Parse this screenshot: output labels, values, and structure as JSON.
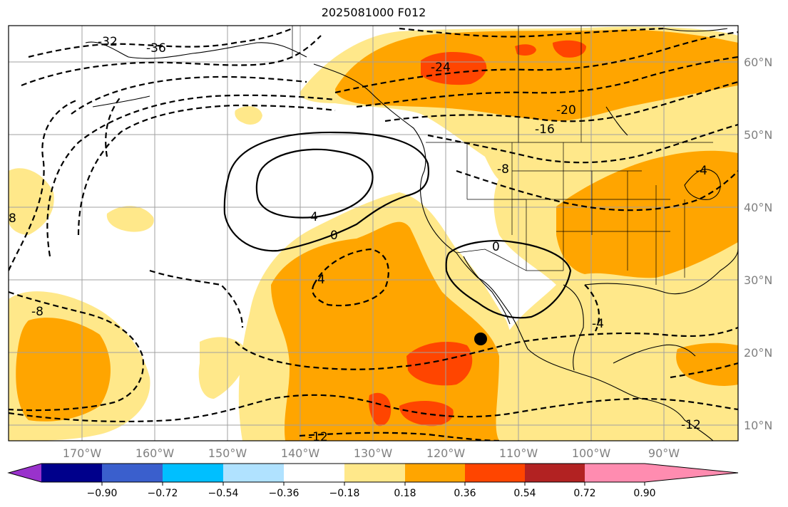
{
  "title": "2025081000 F012",
  "latitude_labels": [
    "60°N",
    "50°N",
    "40°N",
    "30°N",
    "20°N",
    "10°N"
  ],
  "longitude_labels": [
    "170°W",
    "160°W",
    "150°W",
    "140°W",
    "130°W",
    "120°W",
    "110°W",
    "100°W",
    "90°W"
  ],
  "contour_labels": [
    "-36",
    "-32",
    "-24",
    "-20",
    "-16",
    "-8",
    "8",
    "4",
    "0",
    "4",
    "-8",
    "0",
    "-4",
    "-4",
    "-12",
    "-12"
  ],
  "colorbar": {
    "ticks": [
      "−0.90",
      "−0.72",
      "−0.54",
      "−0.36",
      "−0.18",
      "0.18",
      "0.36",
      "0.54",
      "0.72",
      "0.90"
    ],
    "colors": [
      "#9932cc",
      "#00008b",
      "#3a5fcd",
      "#00bfff",
      "#b0e2ff",
      "#ffffff",
      "#ffe88a",
      "#ffa500",
      "#ff4500",
      "#b22222",
      "#ff8cb0"
    ]
  },
  "fill_colors": {
    "light": "#ffe88a",
    "orange": "#ffa500",
    "red": "#ff4500"
  },
  "marker": {
    "name": "point-marker"
  }
}
